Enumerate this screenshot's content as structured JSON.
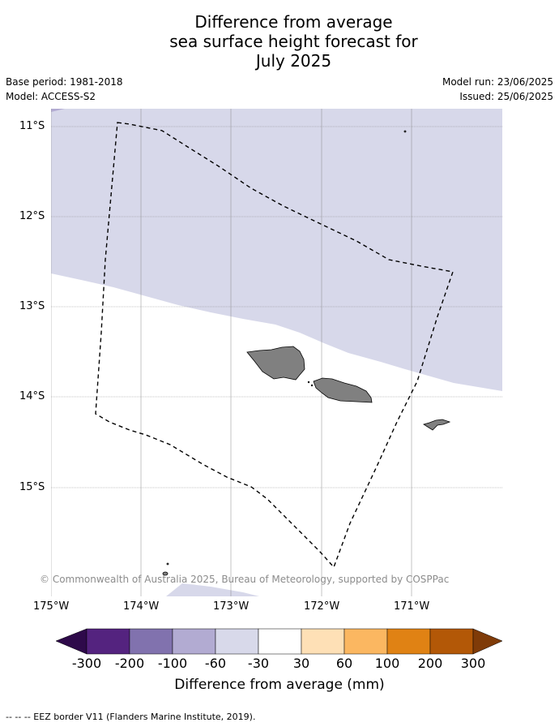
{
  "title": {
    "line1": "Difference from average",
    "line2": "sea surface height forecast for",
    "line3": "July 2025"
  },
  "meta": {
    "base_period": "Base period: 1981-2018",
    "model": "Model: ACCESS-S2",
    "model_run": "Model run: 23/06/2025",
    "issued": "Issued: 25/06/2025"
  },
  "map": {
    "lat_labels": [
      "11°S",
      "12°S",
      "13°S",
      "14°S",
      "15°S"
    ],
    "lon_labels": [
      "175°W",
      "174°W",
      "173°W",
      "172°W",
      "171°W"
    ],
    "copyright": "© Commonwealth of Australia 2025, Bureau of Meteorology, supported by COSPPac",
    "legend_line": "-- -- -- EEZ border V11 (Flanders Marine Institute, 2019).",
    "colors": {
      "anomaly_fill": "#d7d8ea",
      "land": "#808080",
      "grid": "#888888"
    }
  },
  "colorbar": {
    "title": "Difference from average (mm)",
    "labels": [
      "-300",
      "-200",
      "-100",
      "-60",
      "-30",
      "30",
      "60",
      "100",
      "200",
      "300"
    ],
    "colors": [
      "#2e0a4a",
      "#54237f",
      "#8172ae",
      "#b2abd2",
      "#d8d9ea",
      "#ffffff",
      "#fee0b6",
      "#fbb761",
      "#e08214",
      "#b35807",
      "#7f3b08"
    ]
  }
}
